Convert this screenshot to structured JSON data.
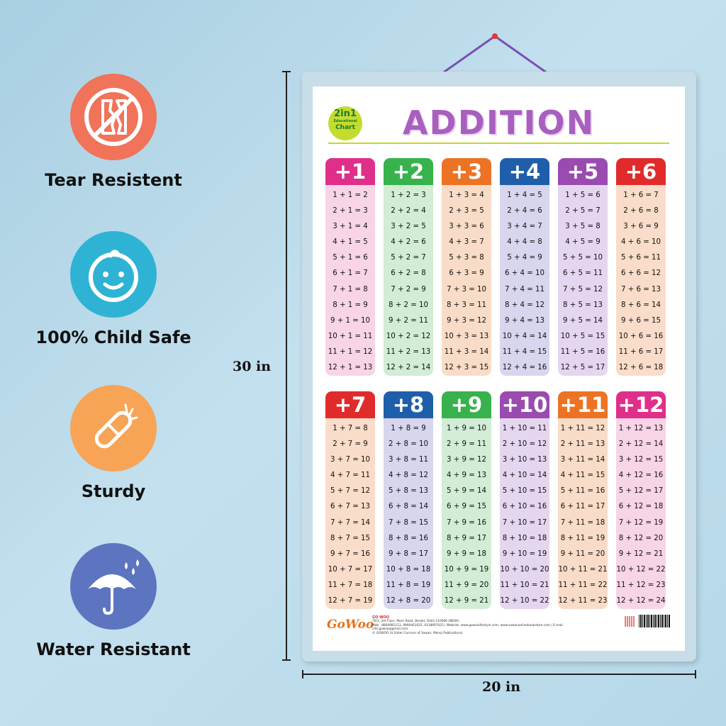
{
  "features": [
    {
      "label": "Tear Resistent",
      "icon": "torn-paper-icon",
      "color": "#f0735a"
    },
    {
      "label": "100% Child Safe",
      "icon": "baby-face-icon",
      "color": "#2fb3d5"
    },
    {
      "label": "Sturdy",
      "icon": "bandage-icon",
      "color": "#f7a456"
    },
    {
      "label": "Water Resistant",
      "icon": "umbrella-rain-icon",
      "color": "#5d74c1"
    }
  ],
  "dimensions": {
    "height": "30 in",
    "width": "20 in"
  },
  "poster": {
    "logo": {
      "line1": "2in1",
      "line2": "Educational",
      "line3": "Chart"
    },
    "title": "ADDITION",
    "columns": [
      {
        "header": "+1",
        "header_color": "#e02f8a",
        "body_color": "#f7d4e6",
        "rows": [
          "1 + 1 =  2",
          "2 + 1 =  3",
          "3 + 1 =  4",
          "4 + 1 =  5",
          "5 + 1 =  6",
          "6 + 1 =  7",
          "7 + 1 =  8",
          "8 + 1 =  9",
          "9 + 1 = 10",
          "10 + 1 = 11",
          "11 + 1 = 12",
          "12 + 1 = 13"
        ]
      },
      {
        "header": "+2",
        "header_color": "#37b24d",
        "body_color": "#d2ecd6",
        "rows": [
          "1 + 2 =  3",
          "2 + 2 =  4",
          "3 + 2 =  5",
          "4 + 2 =  6",
          "5 + 2 =  7",
          "6 + 2 =  8",
          "7 + 2 =  9",
          "8 + 2 = 10",
          "9 + 2 = 11",
          "10 + 2 = 12",
          "11 + 2 = 13",
          "12 + 2 = 14"
        ]
      },
      {
        "header": "+3",
        "header_color": "#ec7324",
        "body_color": "#f9dcc7",
        "rows": [
          "1 + 3 =  4",
          "2 + 3 =  5",
          "3 + 3 =  6",
          "4 + 3 =  7",
          "5 + 3 =  8",
          "6 + 3 =  9",
          "7 + 3 = 10",
          "8 + 3 = 11",
          "9 + 3 = 12",
          "10 + 3 = 13",
          "11 + 3 = 14",
          "12 + 3 = 15"
        ]
      },
      {
        "header": "+4",
        "header_color": "#1f5faa",
        "body_color": "#d8d5ee",
        "rows": [
          "1 + 4 =  5",
          "2 + 4 =  6",
          "3 + 4 =  7",
          "4 + 4 =  8",
          "5 + 4 =  9",
          "6 + 4 = 10",
          "7 + 4 = 11",
          "8 + 4 = 12",
          "9 + 4 = 13",
          "10 + 4 = 14",
          "11 + 4 = 15",
          "12 + 4 = 16"
        ]
      },
      {
        "header": "+5",
        "header_color": "#9a4bb0",
        "body_color": "#e5d6ef",
        "rows": [
          "1 + 5 =  6",
          "2 + 5 =  7",
          "3 + 5 =  8",
          "4 + 5 =  9",
          "5 + 5 = 10",
          "6 + 5 = 11",
          "7 + 5 = 12",
          "8 + 5 = 13",
          "9 + 5 = 14",
          "10 + 5 = 15",
          "11 + 5 = 16",
          "12 + 5 = 17"
        ]
      },
      {
        "header": "+6",
        "header_color": "#e12b2b",
        "body_color": "#f9dcc9",
        "rows": [
          "1 + 6 =  7",
          "2 + 6 =  8",
          "3 + 6 =  9",
          "4 + 6 = 10",
          "5 + 6 = 11",
          "6 + 6 = 12",
          "7 + 6 = 13",
          "8 + 6 = 14",
          "9 + 6 = 15",
          "10 + 6 = 16",
          "11 + 6 = 17",
          "12 + 6 = 18"
        ]
      },
      {
        "header": "+7",
        "header_color": "#e12b2b",
        "body_color": "#f9dcc9",
        "rows": [
          "1 + 7 =  8",
          "2 + 7 =  9",
          "3 + 7 = 10",
          "4 + 7 = 11",
          "5 + 7 = 12",
          "6 + 7 = 13",
          "7 + 7 = 14",
          "8 + 7 = 15",
          "9 + 7 = 16",
          "10 + 7 = 17",
          "11 + 7 = 18",
          "12 + 7 = 19"
        ]
      },
      {
        "header": "+8",
        "header_color": "#1f5faa",
        "body_color": "#d8d5ee",
        "rows": [
          "1 + 8 =  9",
          "2 + 8 = 10",
          "3 + 8 = 11",
          "4 + 8 = 12",
          "5 + 8 = 13",
          "6 + 8 = 14",
          "7 + 8 = 15",
          "8 + 8 = 16",
          "9 + 8 = 17",
          "10 + 8 = 18",
          "11 + 8 = 19",
          "12 + 8 = 20"
        ]
      },
      {
        "header": "+9",
        "header_color": "#37b24d",
        "body_color": "#d2ecd6",
        "rows": [
          "1 + 9 = 10",
          "2 + 9 = 11",
          "3 + 9 = 12",
          "4 + 9 = 13",
          "5 + 9 = 14",
          "6 + 9 = 15",
          "7 + 9 = 16",
          "8 + 9 = 17",
          "9 + 9 = 18",
          "10 + 9 = 19",
          "11 + 9 = 20",
          "12 + 9 = 21"
        ]
      },
      {
        "header": "+10",
        "header_color": "#9a4bb0",
        "body_color": "#e5d6ef",
        "rows": [
          "1 + 10 = 11",
          "2 + 10 = 12",
          "3 + 10 = 13",
          "4 + 10 = 14",
          "5 + 10 = 15",
          "6 + 10 = 16",
          "7 + 10 = 17",
          "8 + 10 = 18",
          "9 + 10 = 19",
          "10 + 10 = 20",
          "11 + 10 = 21",
          "12 + 10 = 22"
        ]
      },
      {
        "header": "+11",
        "header_color": "#ec7324",
        "body_color": "#f9dcc7",
        "rows": [
          "1 + 11 = 12",
          "2 + 11 = 13",
          "3 + 11 = 14",
          "4 + 11 = 15",
          "5 + 11 = 16",
          "6 + 11 = 17",
          "7 + 11 = 18",
          "8 + 11 = 19",
          "9 + 11 = 20",
          "10 + 11 = 21",
          "11 + 11 = 22",
          "12 + 11 = 23"
        ]
      },
      {
        "header": "+12",
        "header_color": "#e02f8a",
        "body_color": "#f7d4e6",
        "rows": [
          "1 + 12 = 13",
          "2 + 12 = 14",
          "3 + 12 = 15",
          "4 + 12 = 16",
          "5 + 12 = 17",
          "6 + 12 = 18",
          "7 + 12 = 19",
          "8 + 12 = 20",
          "9 + 12 = 21",
          "10 + 12 = 22",
          "11 + 12 = 23",
          "12 + 12 = 24"
        ]
      }
    ],
    "footer": {
      "brand": "GoWoo",
      "company": "GO WOO",
      "address": "76/1, 3rd Floor, Marri Road, Barakt, Delhi 110006 (INDIA)",
      "contact": "Mob.: 8800981113, 9990461025, 9318697025 | Website: www.gowoolifestyle.com, www.sawanonlinebookstore.com | E-mail: info.gowoo@gmail.com",
      "copyright": "© GOWOO (A Sister Concern of Sawan, Manoj Publications)"
    }
  }
}
